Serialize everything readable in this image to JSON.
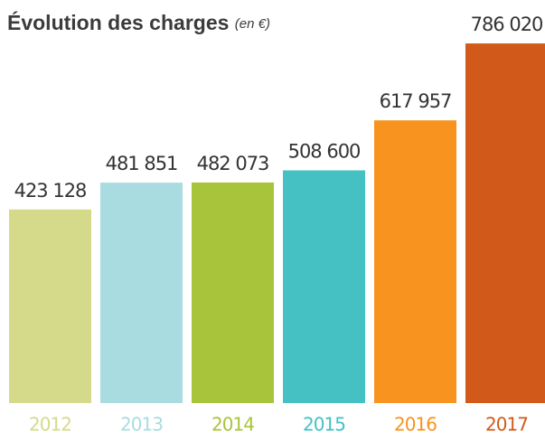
{
  "chart_data": {
    "type": "bar",
    "title": "Évolution des charges",
    "subtitle": "(en €)",
    "categories": [
      "2012",
      "2013",
      "2014",
      "2015",
      "2016",
      "2017"
    ],
    "values": [
      423128,
      481851,
      482073,
      508600,
      617957,
      786020
    ],
    "value_labels": [
      "423 128",
      "481 851",
      "482 073",
      "508 600",
      "617 957",
      "786 020"
    ],
    "colors": [
      "#d4da8a",
      "#a9dce0",
      "#a8c43a",
      "#45c1c4",
      "#f7931e",
      "#d15a1a"
    ],
    "ylim": [
      0,
      800000
    ]
  }
}
